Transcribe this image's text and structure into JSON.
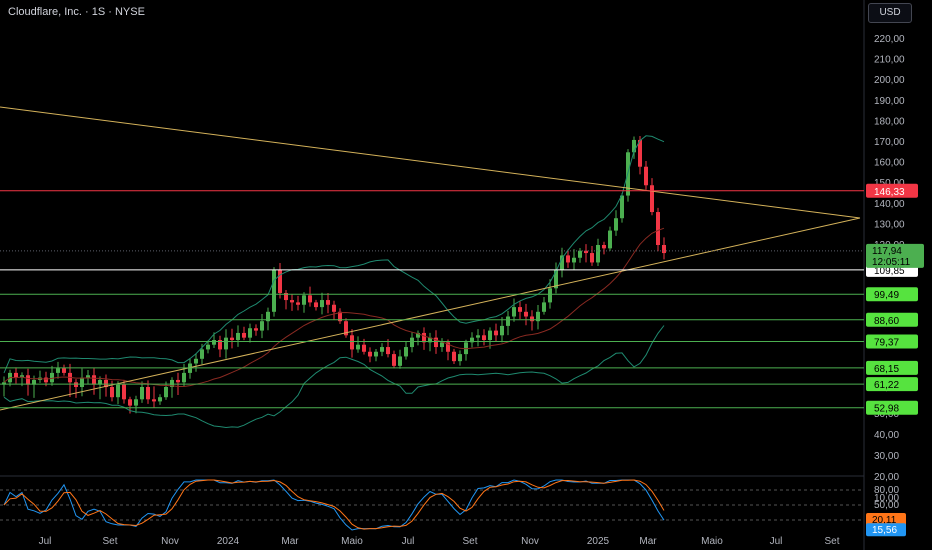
{
  "header": {
    "title": "Cloudflare, Inc. · 1S · NYSE",
    "currency": "USD"
  },
  "colors": {
    "up": "#4caf50",
    "down": "#f23645",
    "trend": "#d4b25a",
    "bollinger": "#1f8a70",
    "ma": "#8a2a22",
    "support": "#4caf50",
    "resistance": "#f23645",
    "stoch_k": "#2196f3",
    "stoch_d": "#ff7518"
  },
  "chart_data": {
    "type": "candlestick",
    "price_axis": {
      "ticks": [
        "220,00",
        "210,00",
        "200,00",
        "190,00",
        "180,00",
        "170,00",
        "160,00",
        "150,00",
        "140,00",
        "130,00",
        "120,00",
        "60,00",
        "50,00",
        "40,00",
        "30,00",
        "20,00",
        "10,00"
      ],
      "values": [
        220,
        210,
        200,
        190,
        180,
        170,
        160,
        150,
        140,
        130,
        120,
        60,
        50,
        40,
        30,
        20,
        10
      ],
      "range": [
        10,
        225
      ]
    },
    "time_axis": {
      "labels": [
        "Jul",
        "Set",
        "Nov",
        "2024",
        "Mar",
        "Maio",
        "Jul",
        "Set",
        "Nov",
        "2025",
        "Mar",
        "Maio",
        "Jul",
        "Set"
      ]
    },
    "levels": [
      {
        "value": 146.33,
        "label": "146,33",
        "kind": "resistance"
      },
      {
        "value": 109.85,
        "label": "109,85",
        "kind": "white"
      },
      {
        "value": 99.49,
        "label": "99,49",
        "kind": "support"
      },
      {
        "value": 88.6,
        "label": "88,60",
        "kind": "support"
      },
      {
        "value": 79.37,
        "label": "79,37",
        "kind": "support"
      },
      {
        "value": 68.15,
        "label": "68,15",
        "kind": "support"
      },
      {
        "value": 61.22,
        "label": "61,22",
        "kind": "support"
      },
      {
        "value": 52.98,
        "label": "52,98",
        "kind": "support"
      }
    ],
    "last_price": {
      "value": 117.94,
      "label": "117,94",
      "countdown": "12:05:11"
    },
    "closes": [
      62,
      66,
      64,
      65,
      61,
      63,
      64,
      62,
      66,
      68,
      66,
      62,
      60,
      64,
      65,
      61,
      63,
      60,
      58,
      61,
      57,
      54,
      57,
      60,
      57,
      56,
      58,
      60,
      63,
      62,
      66,
      70,
      72,
      76,
      78,
      80,
      76,
      81,
      80,
      83,
      81,
      85,
      84,
      88,
      92,
      110,
      100,
      97,
      96,
      95,
      99,
      96,
      94,
      97,
      95,
      92,
      88,
      82,
      76,
      78,
      75,
      73,
      75,
      77,
      74,
      69,
      73,
      77,
      81,
      83,
      79,
      81,
      77,
      79,
      75,
      71,
      74,
      79,
      81,
      82,
      80,
      84,
      82,
      86,
      90,
      94,
      92,
      90,
      88,
      92,
      96,
      102,
      110,
      116,
      113,
      115,
      118,
      117,
      113,
      120,
      119,
      127,
      133,
      144,
      165,
      171,
      158,
      149,
      136,
      120,
      117
    ],
    "stochastic": {
      "levels": [
        "80,00",
        "50,00",
        "20,00",
        "0,00"
      ],
      "k_label": "20,11",
      "d_label": "15,56",
      "d_value": 15.56,
      "k_value": 20.11
    }
  }
}
